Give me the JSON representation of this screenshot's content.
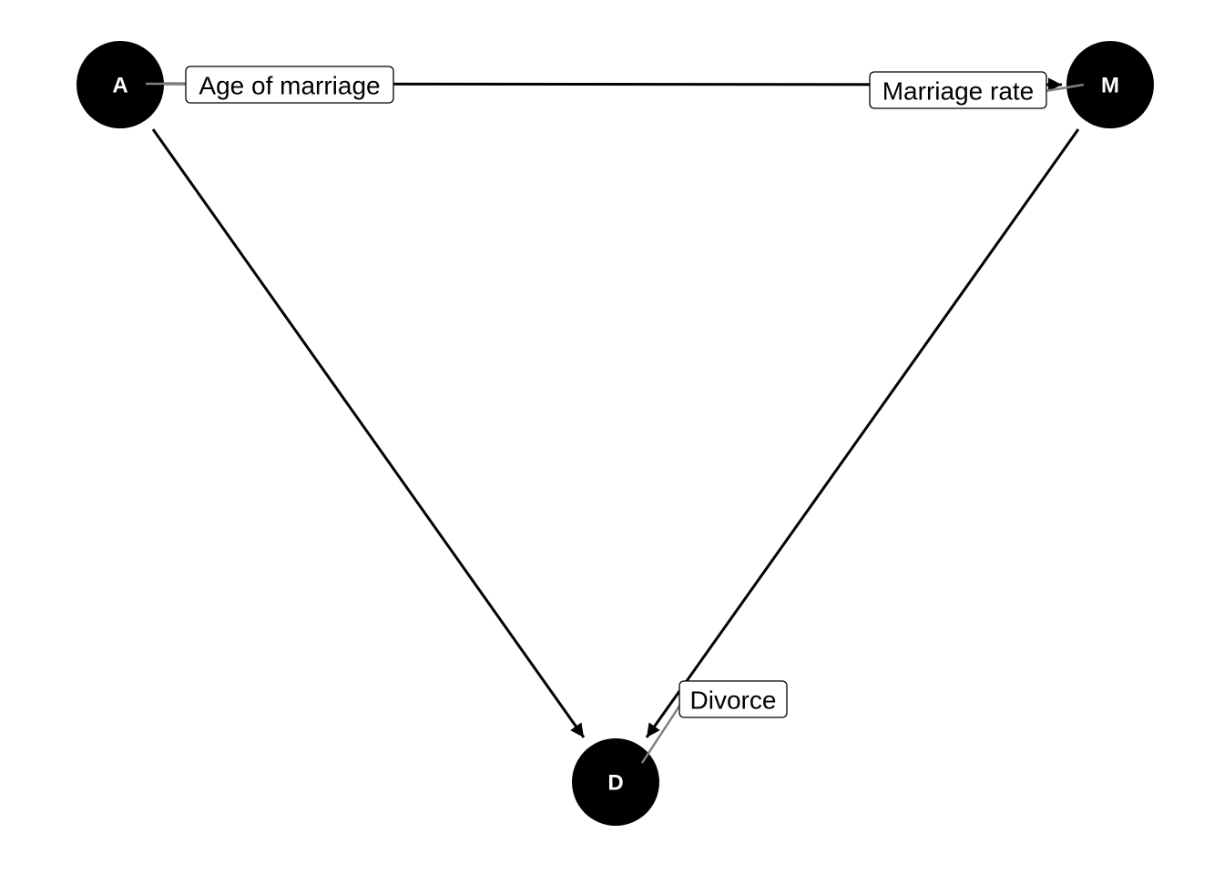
{
  "nodes": {
    "A": {
      "letter": "A",
      "label": "Age of marriage"
    },
    "M": {
      "letter": "M",
      "label": "Marriage rate"
    },
    "D": {
      "letter": "D",
      "label": "Divorce"
    }
  },
  "edges": [
    {
      "from": "A",
      "to": "M"
    },
    {
      "from": "A",
      "to": "D"
    },
    {
      "from": "M",
      "to": "D"
    }
  ],
  "colors": {
    "node_fill": "#000000",
    "node_text": "#ffffff",
    "edge": "#000000",
    "leader_line": "#808080",
    "label_box_fill": "#ffffff",
    "label_box_border": "#000000"
  }
}
